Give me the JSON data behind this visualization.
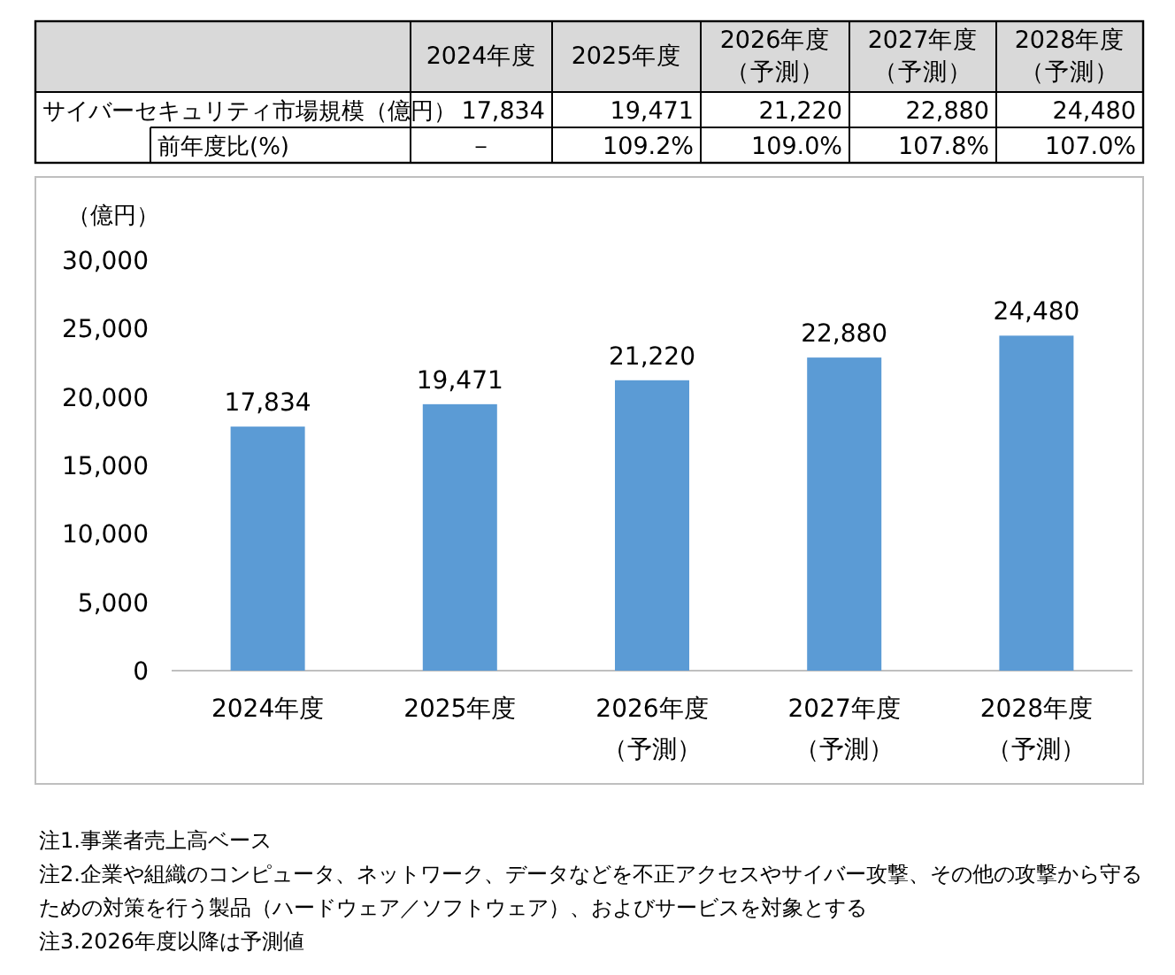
{
  "chart_data": {
    "type": "bar",
    "ylabel": "（億円）",
    "categories": [
      "2024年度",
      "2025年度",
      "2026年度（予測）",
      "2027年度（予測）",
      "2028年度（予測）"
    ],
    "values": [
      17834,
      19471,
      21220,
      22880,
      24480
    ],
    "value_labels": [
      "17,834",
      "19,471",
      "21,220",
      "22,880",
      "24,480"
    ],
    "color": "#5b9bd5",
    "ylim": [
      0,
      30000
    ],
    "yticks": [
      {
        "value": 0,
        "label": "0"
      },
      {
        "value": 5000,
        "label": "5,000"
      },
      {
        "value": 10000,
        "label": "10,000"
      },
      {
        "value": 15000,
        "label": "15,000"
      },
      {
        "value": 20000,
        "label": "20,000"
      },
      {
        "value": 25000,
        "label": "25,000"
      },
      {
        "value": 30000,
        "label": "30,000"
      }
    ],
    "annotations": [
      "サイバーセキュリティ市場規模（億円）",
      "17,834",
      "19,471",
      "21,220",
      "22,880",
      "24,480",
      "前年度比(%)",
      "－",
      "109.2%",
      "109.0%",
      "107.8%",
      "107.0%",
      "注1.事業者売上高ベース",
      "注2.企業や組織のコンピュータ、ネットワーク、データなどを不正アクセスやサイバー攻撃、その他の攻撃から守るための対策を行う製品（ハードウェア／ソフトウェア）、およびサービスを対象とする",
      "注3.2026年度以降は予測値"
    ]
  }
}
